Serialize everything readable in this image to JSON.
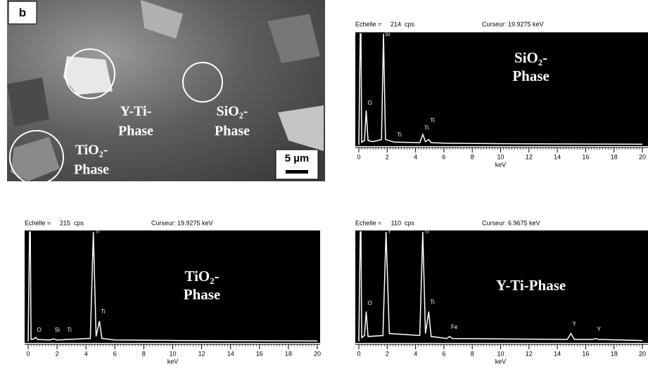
{
  "panel_label": "b",
  "sem_image": {
    "labels": [
      {
        "lines": [
          "Y-Ti-",
          "Phase"
        ]
      },
      {
        "lines": [
          "SiO₂-",
          "Phase"
        ]
      },
      {
        "lines": [
          "TiO₂-",
          "Phase"
        ]
      }
    ],
    "scale_bar": "5 µm"
  },
  "chart_data": [
    {
      "type": "line",
      "scale_label": "Echelle =",
      "scale_value": 214,
      "scale_unit": "cps",
      "cursor": "Curseur: 19.9275 keV",
      "phase_label": [
        "SiO₂-",
        "Phase"
      ],
      "xlabel": "keV",
      "x": [
        0,
        0.1,
        0.15,
        0.2,
        0.4,
        0.52,
        0.65,
        1.0,
        1.6,
        1.74,
        1.88,
        2.5,
        4.3,
        4.51,
        4.7,
        4.93,
        5.1,
        6,
        10,
        20
      ],
      "values": [
        0,
        214,
        214,
        5,
        8,
        66,
        8,
        6,
        10,
        214,
        10,
        5,
        4,
        20,
        6,
        10,
        4,
        3,
        2,
        1
      ],
      "peak_labels": [
        {
          "x": 0.52,
          "y": 72,
          "label": "O"
        },
        {
          "x": 1.74,
          "y": 205,
          "label": "Si"
        },
        {
          "x": 2.6,
          "y": 10,
          "label": "Ti"
        },
        {
          "x": 4.51,
          "y": 24,
          "label": "Ti"
        },
        {
          "x": 4.93,
          "y": 38,
          "label": "Ti"
        }
      ],
      "xlim": [
        0,
        20
      ],
      "ylim": [
        0,
        214
      ],
      "xticks": [
        0,
        2,
        4,
        6,
        8,
        10,
        12,
        14,
        16,
        18,
        20
      ]
    },
    {
      "type": "line",
      "scale_label": "Echelle =",
      "scale_value": 215,
      "scale_unit": "cps",
      "cursor": "Curseur: 19.9275 keV",
      "phase_label": [
        "TiO₂-",
        "Phase"
      ],
      "xlabel": "keV",
      "x": [
        0,
        0.1,
        0.15,
        0.2,
        0.4,
        0.52,
        0.65,
        1.5,
        1.74,
        2.0,
        4.3,
        4.51,
        4.7,
        4.93,
        5.1,
        6,
        10,
        20
      ],
      "values": [
        0,
        215,
        215,
        4,
        5,
        8,
        4,
        3,
        5,
        3,
        6,
        215,
        10,
        40,
        6,
        3,
        2,
        1
      ],
      "peak_labels": [
        {
          "x": 0.52,
          "y": 14,
          "label": "O"
        },
        {
          "x": 1.74,
          "y": 14,
          "label": "Si"
        },
        {
          "x": 2.6,
          "y": 14,
          "label": "Ti"
        },
        {
          "x": 4.51,
          "y": 207,
          "label": "Ti"
        },
        {
          "x": 4.93,
          "y": 50,
          "label": "Ti"
        }
      ],
      "xlim": [
        0,
        20
      ],
      "ylim": [
        0,
        215
      ],
      "xticks": [
        0,
        2,
        4,
        6,
        8,
        10,
        12,
        14,
        16,
        18,
        20
      ]
    },
    {
      "type": "line",
      "scale_label": "Echelle =",
      "scale_value": 110,
      "scale_unit": "cps",
      "cursor": "Curseur: 6.9675 keV",
      "phase_label": [
        "Y-Ti-Phase"
      ],
      "xlabel": "keV",
      "x": [
        0,
        0.1,
        0.15,
        0.2,
        0.4,
        0.52,
        0.65,
        1.7,
        1.92,
        2.15,
        4.3,
        4.51,
        4.7,
        4.93,
        5.1,
        6.2,
        6.4,
        6.6,
        14.7,
        14.96,
        15.2,
        16.5,
        16.7,
        16.9,
        20
      ],
      "values": [
        0,
        110,
        110,
        4,
        6,
        30,
        5,
        6,
        110,
        8,
        6,
        110,
        8,
        30,
        5,
        3,
        5,
        3,
        2,
        8,
        2,
        2,
        3,
        2,
        1
      ],
      "peak_labels": [
        {
          "x": 0.52,
          "y": 34,
          "label": "O"
        },
        {
          "x": 1.92,
          "y": 106,
          "label": "Y"
        },
        {
          "x": 4.51,
          "y": 106,
          "label": "Ti"
        },
        {
          "x": 4.93,
          "y": 35,
          "label": "Ti"
        },
        {
          "x": 6.4,
          "y": 10,
          "label": "Fe"
        },
        {
          "x": 14.96,
          "y": 13,
          "label": "Y"
        },
        {
          "x": 16.7,
          "y": 8,
          "label": "Y"
        }
      ],
      "xlim": [
        0,
        20
      ],
      "ylim": [
        0,
        110
      ],
      "xticks": [
        0,
        2,
        4,
        6,
        8,
        10,
        12,
        14,
        16,
        18,
        20
      ]
    }
  ]
}
